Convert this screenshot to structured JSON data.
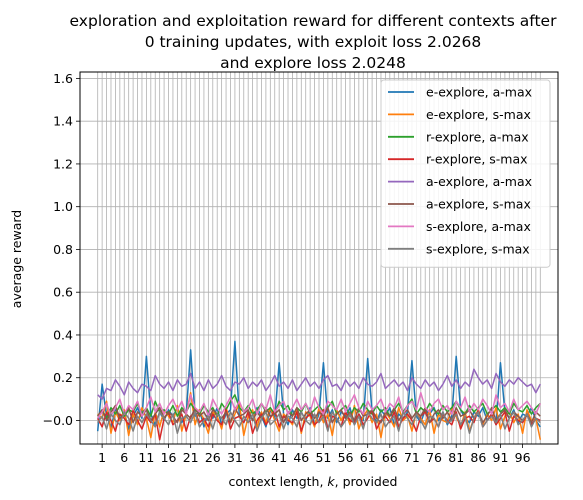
{
  "chart_data": {
    "type": "line",
    "title_lines": [
      "exploration and exploitation reward for different contexts after",
      "0 training updates, with exploit loss 2.0268",
      "and explore loss 2.0248"
    ],
    "xlabel": "context length, k, provided",
    "ylabel": "average reward",
    "xlim": [
      -4,
      104
    ],
    "ylim": [
      -0.11,
      1.63
    ],
    "xticks": [
      1,
      6,
      11,
      16,
      21,
      26,
      31,
      36,
      41,
      46,
      51,
      56,
      61,
      66,
      71,
      76,
      81,
      86,
      91,
      96
    ],
    "yticks": [
      -0.0,
      0.2,
      0.4,
      0.6,
      0.8,
      1.0,
      1.2,
      1.4,
      1.6
    ],
    "ytick_labels": [
      "−0.0",
      "0.2",
      "0.4",
      "0.6",
      "0.8",
      "1.0",
      "1.2",
      "1.4",
      "1.6"
    ],
    "grid": true,
    "legend_position": "top-right",
    "x": [
      0,
      1,
      2,
      3,
      4,
      5,
      6,
      7,
      8,
      9,
      10,
      11,
      12,
      13,
      14,
      15,
      16,
      17,
      18,
      19,
      20,
      21,
      22,
      23,
      24,
      25,
      26,
      27,
      28,
      29,
      30,
      31,
      32,
      33,
      34,
      35,
      36,
      37,
      38,
      39,
      40,
      41,
      42,
      43,
      44,
      45,
      46,
      47,
      48,
      49,
      50,
      51,
      52,
      53,
      54,
      55,
      56,
      57,
      58,
      59,
      60,
      61,
      62,
      63,
      64,
      65,
      66,
      67,
      68,
      69,
      70,
      71,
      72,
      73,
      74,
      75,
      76,
      77,
      78,
      79,
      80,
      81,
      82,
      83,
      84,
      85,
      86,
      87,
      88,
      89,
      90,
      91,
      92,
      93,
      94,
      95,
      96,
      97,
      98,
      99,
      100
    ],
    "series": [
      {
        "name": "e-explore, a-max",
        "color": "#1f77b4",
        "values": [
          -0.05,
          0.17,
          0.02,
          -0.03,
          0.05,
          0.01,
          0.04,
          -0.04,
          0.02,
          0.06,
          0.01,
          0.3,
          0.03,
          -0.02,
          0.04,
          0.0,
          0.05,
          0.02,
          0.06,
          -0.01,
          0.03,
          0.33,
          0.02,
          0.05,
          -0.03,
          0.04,
          0.01,
          0.06,
          -0.02,
          0.03,
          0.05,
          0.37,
          0.02,
          -0.01,
          0.04,
          0.0,
          0.06,
          0.02,
          -0.03,
          0.05,
          0.01,
          0.27,
          0.03,
          -0.02,
          0.05,
          0.01,
          0.04,
          0.0,
          0.06,
          -0.02,
          0.03,
          0.27,
          0.01,
          0.05,
          -0.01,
          0.04,
          0.02,
          0.06,
          -0.02,
          0.03,
          0.0,
          0.29,
          0.04,
          -0.01,
          0.05,
          0.02,
          0.06,
          -0.02,
          0.03,
          0.01,
          0.04,
          0.28,
          0.02,
          -0.01,
          0.05,
          0.03,
          0.06,
          0.0,
          0.04,
          -0.02,
          0.02,
          0.3,
          0.05,
          0.01,
          -0.01,
          0.04,
          0.02,
          0.06,
          0.0,
          0.03,
          -0.02,
          0.27,
          0.04,
          0.01,
          0.05,
          -0.01,
          0.03,
          0.02,
          0.06,
          0.0,
          -0.03
        ]
      },
      {
        "name": "e-explore, s-max",
        "color": "#ff7f0e",
        "values": [
          0.03,
          0.01,
          0.09,
          -0.06,
          0.04,
          0.0,
          0.05,
          -0.07,
          0.03,
          -0.02,
          0.06,
          0.01,
          -0.08,
          0.04,
          -0.03,
          0.05,
          0.02,
          -0.01,
          0.07,
          -0.05,
          0.03,
          0.13,
          -0.02,
          0.05,
          0.0,
          -0.06,
          0.04,
          0.02,
          -0.04,
          0.06,
          -0.01,
          0.03,
          0.08,
          -0.07,
          0.02,
          0.05,
          -0.03,
          0.04,
          -0.01,
          0.06,
          0.0,
          -0.05,
          0.03,
          0.01,
          -0.02,
          0.05,
          -0.06,
          0.04,
          0.02,
          -0.03,
          0.06,
          -0.01,
          0.03,
          -0.07,
          0.05,
          0.0,
          0.04,
          -0.02,
          0.07,
          -0.04,
          0.02,
          0.05,
          -0.01,
          0.03,
          -0.08,
          0.04,
          0.01,
          -0.03,
          0.06,
          0.0,
          0.02,
          -0.05,
          0.04,
          0.01,
          -0.02,
          0.05,
          -0.06,
          0.03,
          0.0,
          -0.01,
          0.06,
          0.02,
          -0.03,
          0.04,
          -0.05,
          0.01,
          0.05,
          -0.02,
          0.03,
          0.0,
          0.06,
          -0.04,
          0.02,
          0.04,
          -0.01,
          0.03,
          -0.06,
          0.05,
          0.0,
          0.01,
          -0.09
        ]
      },
      {
        "name": "r-explore, a-max",
        "color": "#2ca02c",
        "values": [
          0.02,
          0.05,
          0.01,
          0.06,
          0.03,
          0.07,
          0.02,
          0.05,
          0.04,
          0.08,
          0.03,
          0.06,
          0.02,
          0.09,
          0.04,
          0.05,
          0.03,
          0.07,
          0.02,
          0.06,
          0.04,
          0.08,
          0.05,
          0.03,
          0.07,
          0.04,
          0.06,
          0.02,
          0.08,
          0.05,
          0.09,
          0.12,
          0.06,
          0.04,
          0.07,
          0.03,
          0.05,
          0.08,
          0.04,
          0.06,
          0.03,
          0.09,
          0.05,
          0.07,
          0.02,
          0.06,
          0.04,
          0.08,
          0.03,
          0.05,
          0.07,
          0.04,
          0.06,
          0.09,
          0.03,
          0.05,
          0.07,
          0.02,
          0.06,
          0.04,
          0.08,
          0.05,
          0.03,
          0.07,
          0.04,
          0.06,
          0.02,
          0.05,
          0.08,
          0.04,
          0.07,
          0.1,
          0.03,
          0.06,
          0.04,
          0.08,
          0.05,
          0.03,
          0.07,
          0.04,
          0.06,
          0.09,
          0.05,
          0.03,
          0.07,
          0.04,
          0.06,
          0.08,
          0.03,
          0.05,
          0.07,
          0.04,
          0.06,
          0.03,
          0.08,
          0.05,
          0.04,
          0.07,
          0.03,
          0.06,
          0.08
        ]
      },
      {
        "name": "r-explore, s-max",
        "color": "#d62728",
        "values": [
          0.01,
          -0.03,
          0.04,
          0.0,
          -0.05,
          0.03,
          0.01,
          -0.02,
          0.05,
          0.0,
          -0.04,
          0.02,
          -0.01,
          0.03,
          -0.09,
          0.01,
          0.04,
          -0.02,
          0.0,
          0.03,
          -0.05,
          0.02,
          0.04,
          -0.01,
          0.01,
          -0.03,
          0.03,
          0.0,
          -0.02,
          0.05,
          -0.04,
          0.01,
          0.02,
          -0.01,
          0.04,
          -0.06,
          0.0,
          0.03,
          -0.02,
          0.01,
          0.05,
          -0.03,
          0.02,
          0.0,
          -0.01,
          0.04,
          -0.05,
          0.01,
          0.03,
          -0.02,
          0.0,
          0.05,
          -0.04,
          0.02,
          0.01,
          -0.03,
          0.04,
          0.0,
          -0.01,
          0.03,
          -0.02,
          0.01,
          0.05,
          -0.04,
          0.0,
          0.02,
          -0.01,
          0.04,
          -0.03,
          0.01,
          0.03,
          0.0,
          -0.05,
          0.02,
          0.04,
          -0.01,
          0.01,
          -0.03,
          0.03,
          0.0,
          -0.02,
          0.04,
          -0.04,
          0.01,
          0.02,
          -0.01,
          0.05,
          -0.03,
          0.0,
          0.03,
          -0.02,
          0.01,
          0.04,
          -0.05,
          0.02,
          0.0,
          -0.01,
          0.03,
          -0.02,
          0.01,
          0.0
        ]
      },
      {
        "name": "a-explore, a-max",
        "color": "#9467bd",
        "values": [
          0.12,
          0.1,
          0.15,
          0.14,
          0.19,
          0.16,
          0.12,
          0.18,
          0.15,
          0.13,
          0.17,
          0.16,
          0.14,
          0.21,
          0.17,
          0.15,
          0.18,
          0.14,
          0.19,
          0.16,
          0.17,
          0.22,
          0.15,
          0.18,
          0.14,
          0.19,
          0.15,
          0.17,
          0.21,
          0.16,
          0.14,
          0.18,
          0.17,
          0.2,
          0.15,
          0.18,
          0.16,
          0.19,
          0.14,
          0.17,
          0.21,
          0.16,
          0.18,
          0.15,
          0.19,
          0.14,
          0.17,
          0.2,
          0.16,
          0.18,
          0.15,
          0.19,
          0.21,
          0.16,
          0.17,
          0.14,
          0.19,
          0.16,
          0.18,
          0.15,
          0.2,
          0.17,
          0.16,
          0.18,
          0.22,
          0.15,
          0.17,
          0.19,
          0.16,
          0.18,
          0.14,
          0.2,
          0.17,
          0.15,
          0.19,
          0.16,
          0.18,
          0.14,
          0.17,
          0.21,
          0.16,
          0.19,
          0.15,
          0.18,
          0.16,
          0.24,
          0.2,
          0.17,
          0.19,
          0.15,
          0.22,
          0.18,
          0.16,
          0.19,
          0.17,
          0.2,
          0.18,
          0.16,
          0.17,
          0.13,
          0.17
        ]
      },
      {
        "name": "a-explore, s-max",
        "color": "#8c564b",
        "values": [
          0.02,
          0.05,
          0.0,
          0.04,
          0.07,
          0.01,
          0.03,
          0.06,
          -0.01,
          0.04,
          0.02,
          0.05,
          0.0,
          0.03,
          0.06,
          0.01,
          0.04,
          0.02,
          -0.01,
          0.05,
          0.03,
          0.01,
          0.06,
          0.02,
          0.04,
          0.0,
          0.05,
          0.03,
          0.01,
          0.04,
          -0.01,
          0.06,
          0.02,
          0.03,
          0.05,
          0.0,
          0.04,
          0.01,
          0.06,
          0.02,
          0.03,
          0.05,
          -0.01,
          0.04,
          0.02,
          0.06,
          0.0,
          0.03,
          0.05,
          0.01,
          0.04,
          0.02,
          0.06,
          -0.01,
          0.03,
          0.05,
          0.01,
          0.04,
          0.0,
          0.06,
          0.02,
          0.03,
          0.05,
          0.01,
          -0.01,
          0.04,
          0.02,
          0.06,
          0.0,
          0.03,
          0.05,
          0.01,
          0.04,
          0.02,
          0.06,
          -0.01,
          0.03,
          0.05,
          0.01,
          0.04,
          0.0,
          0.06,
          0.02,
          0.03,
          0.05,
          0.01,
          0.04,
          -0.01,
          0.02,
          0.06,
          0.0,
          0.03,
          0.05,
          0.01,
          0.04,
          0.02,
          0.0,
          0.03,
          -0.01,
          0.04,
          0.02
        ]
      },
      {
        "name": "s-explore, a-max",
        "color": "#e377c2",
        "values": [
          0.01,
          0.04,
          0.08,
          0.02,
          0.06,
          0.1,
          0.03,
          0.07,
          0.05,
          0.09,
          0.02,
          0.06,
          0.11,
          0.04,
          0.08,
          0.03,
          0.07,
          0.1,
          0.05,
          0.09,
          0.03,
          0.12,
          0.06,
          0.04,
          0.08,
          0.02,
          0.1,
          0.06,
          0.03,
          0.07,
          0.11,
          0.05,
          0.09,
          0.04,
          0.06,
          0.1,
          0.03,
          0.08,
          0.05,
          0.12,
          0.04,
          0.07,
          0.09,
          0.03,
          0.06,
          0.1,
          0.05,
          0.08,
          0.04,
          0.11,
          0.06,
          0.03,
          0.09,
          0.07,
          0.05,
          0.1,
          0.04,
          0.08,
          0.12,
          0.06,
          0.03,
          0.09,
          0.05,
          0.07,
          0.1,
          0.04,
          0.08,
          0.06,
          0.11,
          0.03,
          0.07,
          0.09,
          0.05,
          0.13,
          0.06,
          0.04,
          0.08,
          0.1,
          0.05,
          0.07,
          0.03,
          0.09,
          0.06,
          0.11,
          0.04,
          0.08,
          0.05,
          0.1,
          0.07,
          0.03,
          0.12,
          0.06,
          0.08,
          0.04,
          0.1,
          0.05,
          0.07,
          0.09,
          0.06,
          0.03,
          0.08
        ]
      },
      {
        "name": "s-explore, s-max",
        "color": "#7f7f7f",
        "values": [
          -0.01,
          0.02,
          -0.04,
          0.03,
          0.0,
          -0.02,
          0.04,
          0.01,
          -0.05,
          0.02,
          -0.01,
          0.03,
          0.0,
          -0.03,
          0.04,
          0.01,
          -0.02,
          0.03,
          -0.06,
          0.01,
          0.02,
          -0.01,
          0.04,
          -0.03,
          0.0,
          0.02,
          -0.04,
          0.03,
          0.01,
          -0.02,
          0.04,
          0.0,
          -0.03,
          0.02,
          -0.01,
          0.03,
          -0.05,
          0.01,
          0.04,
          -0.02,
          0.0,
          0.03,
          -0.04,
          0.02,
          0.01,
          -0.03,
          0.04,
          0.0,
          -0.02,
          0.03,
          -0.01,
          0.02,
          -0.05,
          0.04,
          0.01,
          -0.03,
          0.0,
          0.03,
          -0.02,
          0.02,
          -0.04,
          0.04,
          0.01,
          -0.01,
          0.03,
          -0.03,
          0.0,
          0.02,
          -0.05,
          0.04,
          0.01,
          -0.02,
          0.03,
          0.0,
          -0.04,
          0.02,
          0.01,
          -0.03,
          0.04,
          -0.01,
          0.0,
          0.03,
          -0.02,
          0.02,
          -0.06,
          0.01,
          0.04,
          -0.03,
          0.0,
          0.02,
          -0.01,
          0.03,
          -0.04,
          0.01,
          0.04,
          -0.02,
          0.0,
          0.03,
          -0.03,
          0.01,
          -0.01
        ]
      }
    ]
  }
}
